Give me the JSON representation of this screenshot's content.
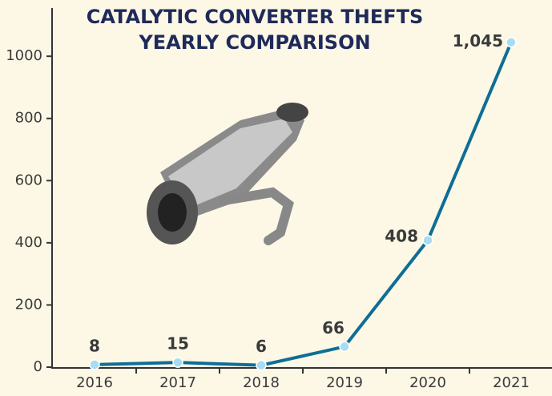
{
  "chart_data": {
    "type": "line",
    "title": [
      "CATALYTIC CONVERTER THEFTS",
      "YEARLY COMPARISON"
    ],
    "categories": [
      "2016",
      "2017",
      "2018",
      "2019",
      "2020",
      "2021"
    ],
    "series": [
      {
        "color": "#0d6e96",
        "values": [
          8,
          15,
          6,
          66,
          408,
          1045
        ],
        "value_labels": [
          "8",
          "15",
          "6",
          "66",
          "408",
          "1,045"
        ]
      }
    ],
    "ylim": [
      0,
      1150
    ],
    "yticks": [
      0,
      200,
      400,
      600,
      800,
      1000
    ]
  }
}
